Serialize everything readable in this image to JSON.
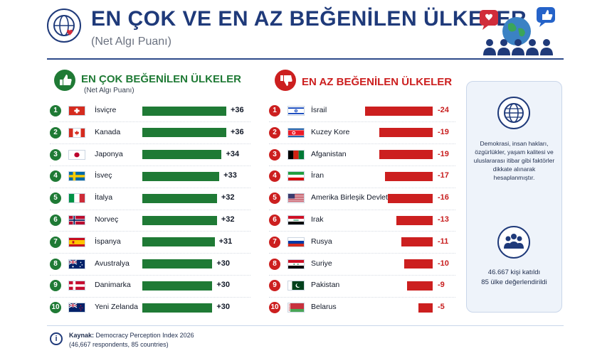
{
  "header": {
    "title": "EN ÇOK VE EN AZ BEĞENİLEN ÜLKELER",
    "subtitle": "(Net Algı Puanı)"
  },
  "left": {
    "title": "EN ÇOK BEĞENİLEN ÜLKELER",
    "subtitle": "(Net Algı Puanı)",
    "accent": "#1f7a35"
  },
  "right": {
    "title": "EN AZ BEĞENİLEN ÜLKELER",
    "accent": "#cc1f1f"
  },
  "info": {
    "description": "Demokrasi, insan hakları, özgürlükler, yaşam kalitesi ve uluslararası itibar gibi faktörler dikkate alınarak hesaplanmıştır.",
    "participants": "46.667 kişi katıldı",
    "countries": "85 ülke değerlendirildi"
  },
  "footer": {
    "source_label": "Kaynak:",
    "source": "Democracy Perception Index 2026",
    "note": "(46,667 respondents, 85 countries)"
  },
  "chart_data": [
    {
      "type": "bar",
      "title": "EN ÇOK BEĞENİLEN ÜLKELER",
      "categories": [
        "İsviçre",
        "Kanada",
        "Japonya",
        "İsveç",
        "İtalya",
        "Norveç",
        "İspanya",
        "Avustralya",
        "Danimarka",
        "Yeni Zelanda"
      ],
      "labels": [
        "+36",
        "+36",
        "+34",
        "+33",
        "+32",
        "+32",
        "+31",
        "+30",
        "+30",
        "+30"
      ],
      "values": [
        36,
        36,
        34,
        33,
        32,
        32,
        31,
        30,
        30,
        30
      ],
      "flags": [
        "switzerland",
        "canada",
        "japan",
        "sweden",
        "italy",
        "norway",
        "spain",
        "australia",
        "denmark",
        "new-zealand"
      ],
      "color": "#1f7a35"
    },
    {
      "type": "bar",
      "title": "EN AZ BEĞENİLEN ÜLKELER",
      "categories": [
        "İsrail",
        "Kuzey Kore",
        "Afganistan",
        "İran",
        "Amerika Birleşik Devletleri",
        "Irak",
        "Rusya",
        "Suriye",
        "Pakistan",
        "Belarus"
      ],
      "labels": [
        "-24",
        "-19",
        "-19",
        "-17",
        "-16",
        "-13",
        "-11",
        "-10",
        "-9",
        "-5"
      ],
      "values": [
        -24,
        -19,
        -19,
        -17,
        -16,
        -13,
        -11,
        -10,
        -9,
        -5
      ],
      "flags": [
        "israel",
        "north-korea",
        "afghanistan",
        "iran",
        "usa",
        "iraq",
        "russia",
        "syria",
        "pakistan",
        "belarus"
      ],
      "color": "#cc1f1f"
    }
  ]
}
